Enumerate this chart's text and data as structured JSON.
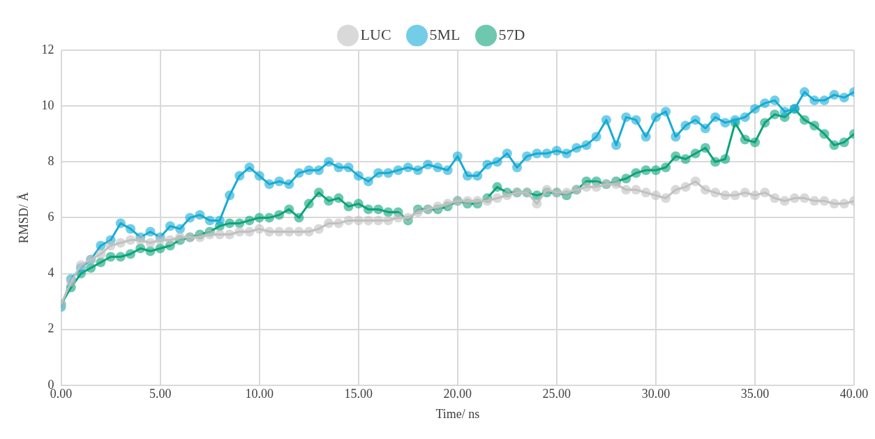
{
  "chart_data": {
    "type": "line",
    "xlabel": "Time/ ns",
    "ylabel": "RMSD/ Å",
    "x": [
      0,
      0.5,
      1,
      1.5,
      2,
      2.5,
      3,
      3.5,
      4,
      4.5,
      5,
      5.5,
      6,
      6.5,
      7,
      7.5,
      8,
      8.5,
      9,
      9.5,
      10,
      10.5,
      11,
      11.5,
      12,
      12.5,
      13,
      13.5,
      14,
      14.5,
      15,
      15.5,
      16,
      16.5,
      17,
      17.5,
      18,
      18.5,
      19,
      19.5,
      20,
      20.5,
      21,
      21.5,
      22,
      22.5,
      23,
      23.5,
      24,
      24.5,
      25,
      25.5,
      26,
      26.5,
      27,
      27.5,
      28,
      28.5,
      29,
      29.5,
      30,
      30.5,
      31,
      31.5,
      32,
      32.5,
      33,
      33.5,
      34,
      34.5,
      35,
      35.5,
      36,
      36.5,
      37,
      37.5,
      38,
      38.5,
      39,
      39.5,
      40
    ],
    "series": [
      {
        "name": "LUC",
        "color": "#c0c0c0",
        "values": [
          2.9,
          3.7,
          4.3,
          4.5,
          4.7,
          5.0,
          5.1,
          5.2,
          5.2,
          5.1,
          5.2,
          5.2,
          5.3,
          5.3,
          5.3,
          5.4,
          5.4,
          5.4,
          5.5,
          5.5,
          5.6,
          5.5,
          5.5,
          5.5,
          5.5,
          5.5,
          5.6,
          5.8,
          5.8,
          5.9,
          5.9,
          5.9,
          5.9,
          5.9,
          6.0,
          6.0,
          6.2,
          6.3,
          6.4,
          6.5,
          6.6,
          6.6,
          6.6,
          6.6,
          6.7,
          6.8,
          6.9,
          6.9,
          6.5,
          7.0,
          6.9,
          6.9,
          7.0,
          7.1,
          7.1,
          7.2,
          7.2,
          7.0,
          7.0,
          6.9,
          6.8,
          6.7,
          7.0,
          7.1,
          7.3,
          7.0,
          6.9,
          6.8,
          6.8,
          6.9,
          6.8,
          6.9,
          6.7,
          6.6,
          6.7,
          6.7,
          6.6,
          6.6,
          6.5,
          6.5,
          6.6
        ]
      },
      {
        "name": "5ML",
        "color": "#16abd5",
        "values": [
          2.8,
          3.8,
          4.2,
          4.5,
          5.0,
          5.2,
          5.8,
          5.6,
          5.3,
          5.5,
          5.3,
          5.7,
          5.6,
          6.0,
          6.1,
          5.9,
          5.9,
          6.8,
          7.5,
          7.8,
          7.5,
          7.2,
          7.3,
          7.2,
          7.6,
          7.7,
          7.7,
          8.0,
          7.8,
          7.8,
          7.5,
          7.3,
          7.6,
          7.6,
          7.7,
          7.8,
          7.7,
          7.9,
          7.8,
          7.7,
          8.2,
          7.5,
          7.5,
          7.9,
          8.0,
          8.3,
          7.8,
          8.2,
          8.3,
          8.3,
          8.4,
          8.3,
          8.5,
          8.6,
          8.9,
          9.5,
          8.6,
          9.6,
          9.5,
          8.9,
          9.6,
          9.8,
          8.9,
          9.3,
          9.5,
          9.2,
          9.6,
          9.4,
          9.5,
          9.6,
          9.9,
          10.1,
          10.2,
          9.8,
          9.9,
          10.5,
          10.2,
          10.2,
          10.4,
          10.3,
          10.5
        ]
      },
      {
        "name": "57D",
        "color": "#0ba47a",
        "values": [
          2.9,
          3.5,
          4.0,
          4.2,
          4.4,
          4.6,
          4.6,
          4.7,
          4.9,
          4.8,
          4.9,
          5.0,
          5.2,
          5.3,
          5.4,
          5.5,
          5.7,
          5.8,
          5.8,
          5.9,
          6.0,
          6.0,
          6.1,
          6.3,
          6.0,
          6.5,
          6.9,
          6.6,
          6.7,
          6.4,
          6.5,
          6.3,
          6.3,
          6.2,
          6.2,
          5.9,
          6.3,
          6.3,
          6.3,
          6.4,
          6.6,
          6.5,
          6.5,
          6.7,
          7.1,
          6.9,
          6.9,
          6.9,
          6.8,
          6.9,
          6.9,
          6.8,
          7.0,
          7.3,
          7.3,
          7.2,
          7.3,
          7.4,
          7.6,
          7.7,
          7.7,
          7.8,
          8.2,
          8.1,
          8.3,
          8.5,
          8.0,
          8.1,
          9.4,
          8.8,
          8.7,
          9.4,
          9.7,
          9.6,
          9.9,
          9.5,
          9.3,
          9.0,
          8.6,
          8.7,
          9.0
        ]
      }
    ],
    "xlim": [
      0,
      40
    ],
    "xticks": [
      {
        "value": 0,
        "label": "0.00"
      },
      {
        "value": 5,
        "label": "5.00"
      },
      {
        "value": 10,
        "label": "10.00"
      },
      {
        "value": 15,
        "label": "15.00"
      },
      {
        "value": 20,
        "label": "20.00"
      },
      {
        "value": 25,
        "label": "25.00"
      },
      {
        "value": 30,
        "label": "30.00"
      },
      {
        "value": 35,
        "label": "35.00"
      },
      {
        "value": 40,
        "label": "40.00"
      }
    ],
    "ylim": [
      0,
      12
    ],
    "yticks": [
      0,
      2,
      4,
      6,
      8,
      10,
      12
    ],
    "grid": true,
    "legend": "top",
    "marker": "circle",
    "line_style": "solid"
  }
}
